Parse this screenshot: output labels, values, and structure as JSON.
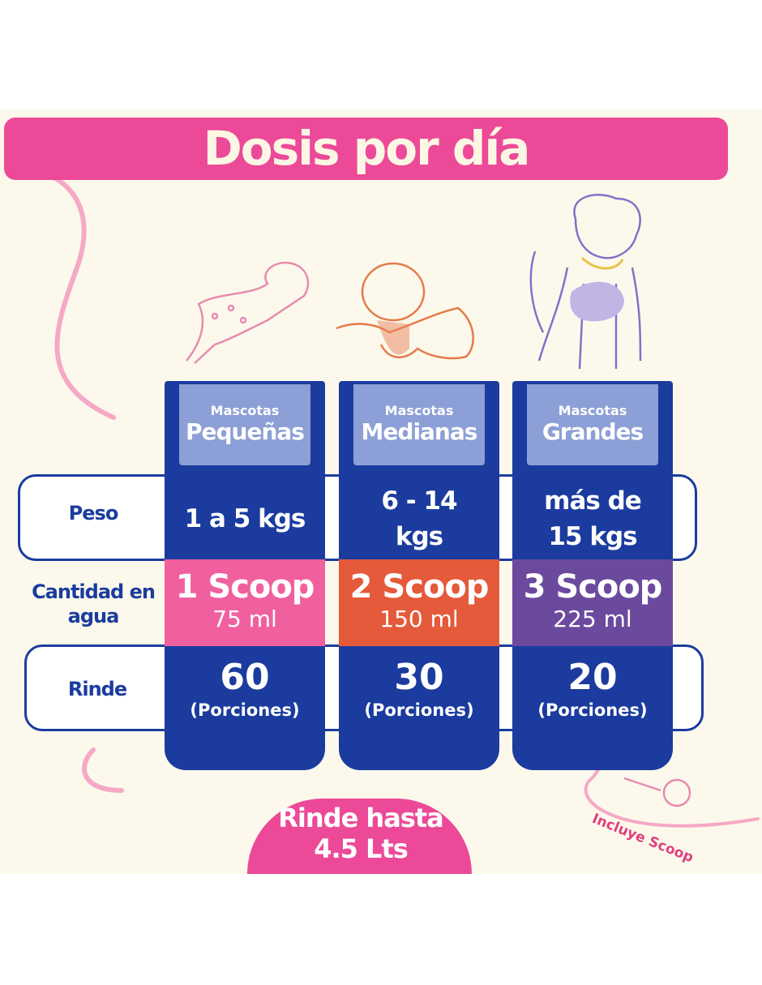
{
  "title": "Dosis por día",
  "row_labels": [
    "Peso",
    "Cantidad en agua",
    "Rinde"
  ],
  "columns": [
    {
      "small": "Mascotas",
      "big": "Pequeñas",
      "weight": "1 a 5 kgs",
      "scoop": "1 Scoop",
      "ml": "75 ml",
      "yield": "60",
      "yield_unit": "(Porciones)"
    },
    {
      "small": "Mascotas",
      "big": "Medianas",
      "weight": "6 - 14 kgs",
      "scoop": "2 Scoop",
      "ml": "150 ml",
      "yield": "30",
      "yield_unit": "(Porciones)"
    },
    {
      "small": "Mascotas",
      "big": "Grandes",
      "weight": "más de 15 kgs",
      "scoop": "3 Scoop",
      "ml": "225 ml",
      "yield": "20",
      "yield_unit": "(Porciones)"
    }
  ],
  "badge": "Rinde hasta 4.5 Lts",
  "includes": "Incluye Scoop"
}
